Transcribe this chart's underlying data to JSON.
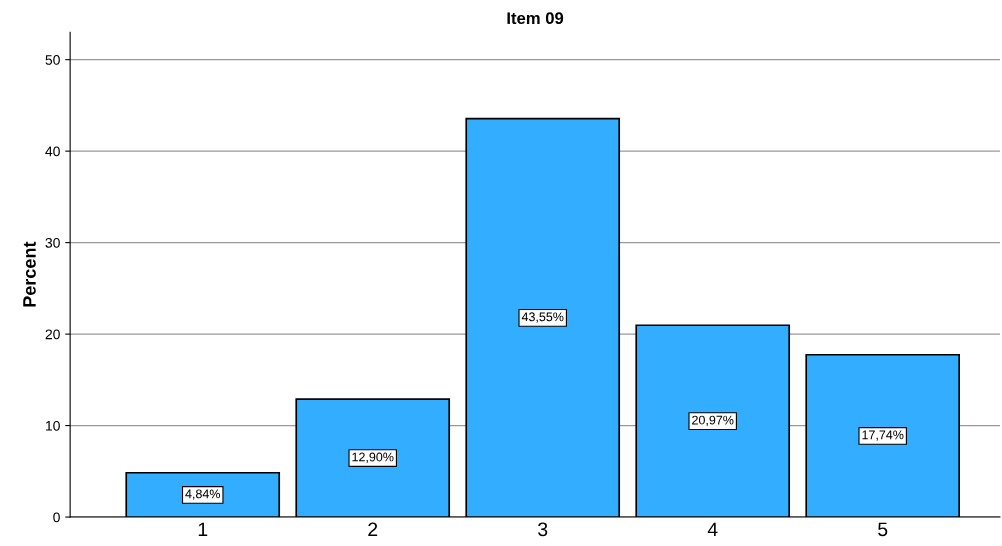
{
  "chart_data": {
    "type": "bar",
    "title": "Item 09",
    "ylabel": "Percent",
    "categories": [
      "1",
      "2",
      "3",
      "4",
      "5"
    ],
    "values": [
      4.84,
      12.9,
      43.55,
      20.97,
      17.74
    ],
    "value_labels": [
      "4,84%",
      "12,90%",
      "43,55%",
      "20,97%",
      "17,74%"
    ],
    "color": "#33adff",
    "ylim": [
      0,
      53
    ],
    "yticks": [
      0,
      10,
      20,
      30,
      40,
      50
    ],
    "grid": "y"
  }
}
